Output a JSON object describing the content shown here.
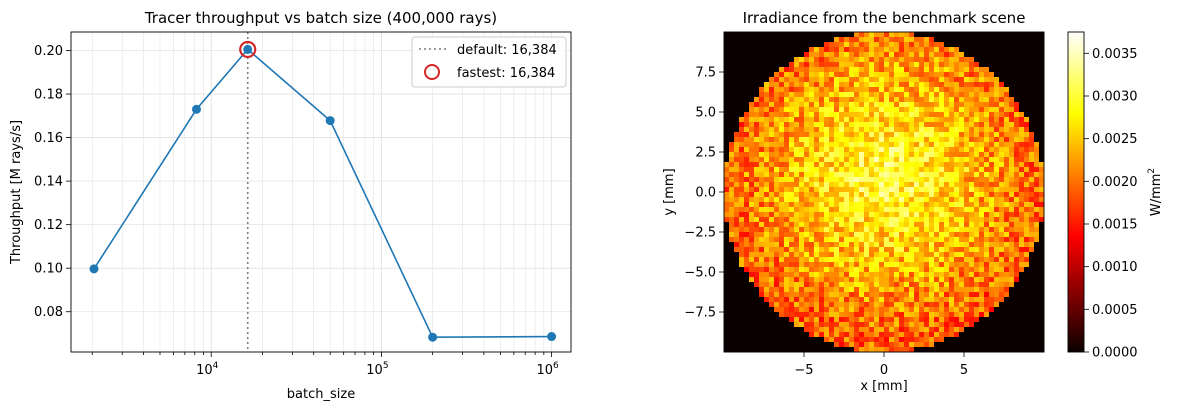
{
  "colors": {
    "line": "#1f77b4",
    "highlight": "#d62728",
    "default_line": "#7f7f7f",
    "grid": "#e3e3e3",
    "axis": "#000000"
  },
  "chart_data": [
    {
      "type": "line",
      "title": "Tracer throughput vs batch size (400,000 rays)",
      "xlabel": "batch_size",
      "ylabel": "Throughput [M rays/s]",
      "x_scale": "log",
      "xlim": [
        1500,
        1300000
      ],
      "ylim": [
        0.0615,
        0.2085
      ],
      "grid": true,
      "x": [
        2048,
        8192,
        16384,
        50000,
        200000,
        1000000
      ],
      "y": [
        0.0997,
        0.173,
        0.2005,
        0.1678,
        0.0683,
        0.0686
      ],
      "x_ticks": [
        {
          "value": 10000,
          "label": "10",
          "exp": "4"
        },
        {
          "value": 100000,
          "label": "10",
          "exp": "5"
        },
        {
          "value": 1000000,
          "label": "10",
          "exp": "6"
        }
      ],
      "y_ticks": [
        {
          "value": 0.08,
          "label": "0.08"
        },
        {
          "value": 0.1,
          "label": "0.10"
        },
        {
          "value": 0.12,
          "label": "0.12"
        },
        {
          "value": 0.14,
          "label": "0.14"
        },
        {
          "value": 0.16,
          "label": "0.16"
        },
        {
          "value": 0.18,
          "label": "0.18"
        },
        {
          "value": 0.2,
          "label": "0.20"
        }
      ],
      "default_x": 16384,
      "fastest_point": {
        "x": 16384,
        "y": 0.2005
      },
      "legend_position": "top-right",
      "legend": [
        {
          "label": "default: 16,384",
          "style": "dotted-line"
        },
        {
          "label": "fastest: 16,384",
          "style": "open-circle"
        }
      ]
    },
    {
      "type": "heatmap",
      "title": "Irradiance from the benchmark scene",
      "xlabel": "x [mm]",
      "ylabel": "y [mm]",
      "xlim": [
        -10,
        10
      ],
      "ylim": [
        -10,
        10
      ],
      "grid_cells": 64,
      "colormap": "hot",
      "colorbar_label": "W/mm",
      "colorbar_label_exp": "2",
      "clim": [
        0,
        0.00375
      ],
      "x_ticks": [
        {
          "value": -5,
          "label": "−5"
        },
        {
          "value": 0,
          "label": "0"
        },
        {
          "value": 5,
          "label": "5"
        }
      ],
      "y_ticks": [
        {
          "value": 7.5,
          "label": "7.5"
        },
        {
          "value": 5.0,
          "label": "5.0"
        },
        {
          "value": 2.5,
          "label": "2.5"
        },
        {
          "value": 0.0,
          "label": "0.0"
        },
        {
          "value": -2.5,
          "label": "−2.5"
        },
        {
          "value": -5.0,
          "label": "−5.0"
        },
        {
          "value": -7.5,
          "label": "−7.5"
        }
      ],
      "colorbar_ticks": [
        {
          "value": 0.0,
          "label": "0.0000"
        },
        {
          "value": 0.0005,
          "label": "0.0005"
        },
        {
          "value": 0.001,
          "label": "0.0010"
        },
        {
          "value": 0.0015,
          "label": "0.0015"
        },
        {
          "value": 0.002,
          "label": "0.0020"
        },
        {
          "value": 0.0025,
          "label": "0.0025"
        },
        {
          "value": 0.003,
          "label": "0.0030"
        },
        {
          "value": 0.0035,
          "label": "0.0035"
        }
      ],
      "disk_radius_mm": 10,
      "peak_center_mm": [
        0,
        1.0
      ],
      "peak_value": 0.0031,
      "edge_value": 0.0019,
      "noise_amplitude": 0.00055
    }
  ]
}
